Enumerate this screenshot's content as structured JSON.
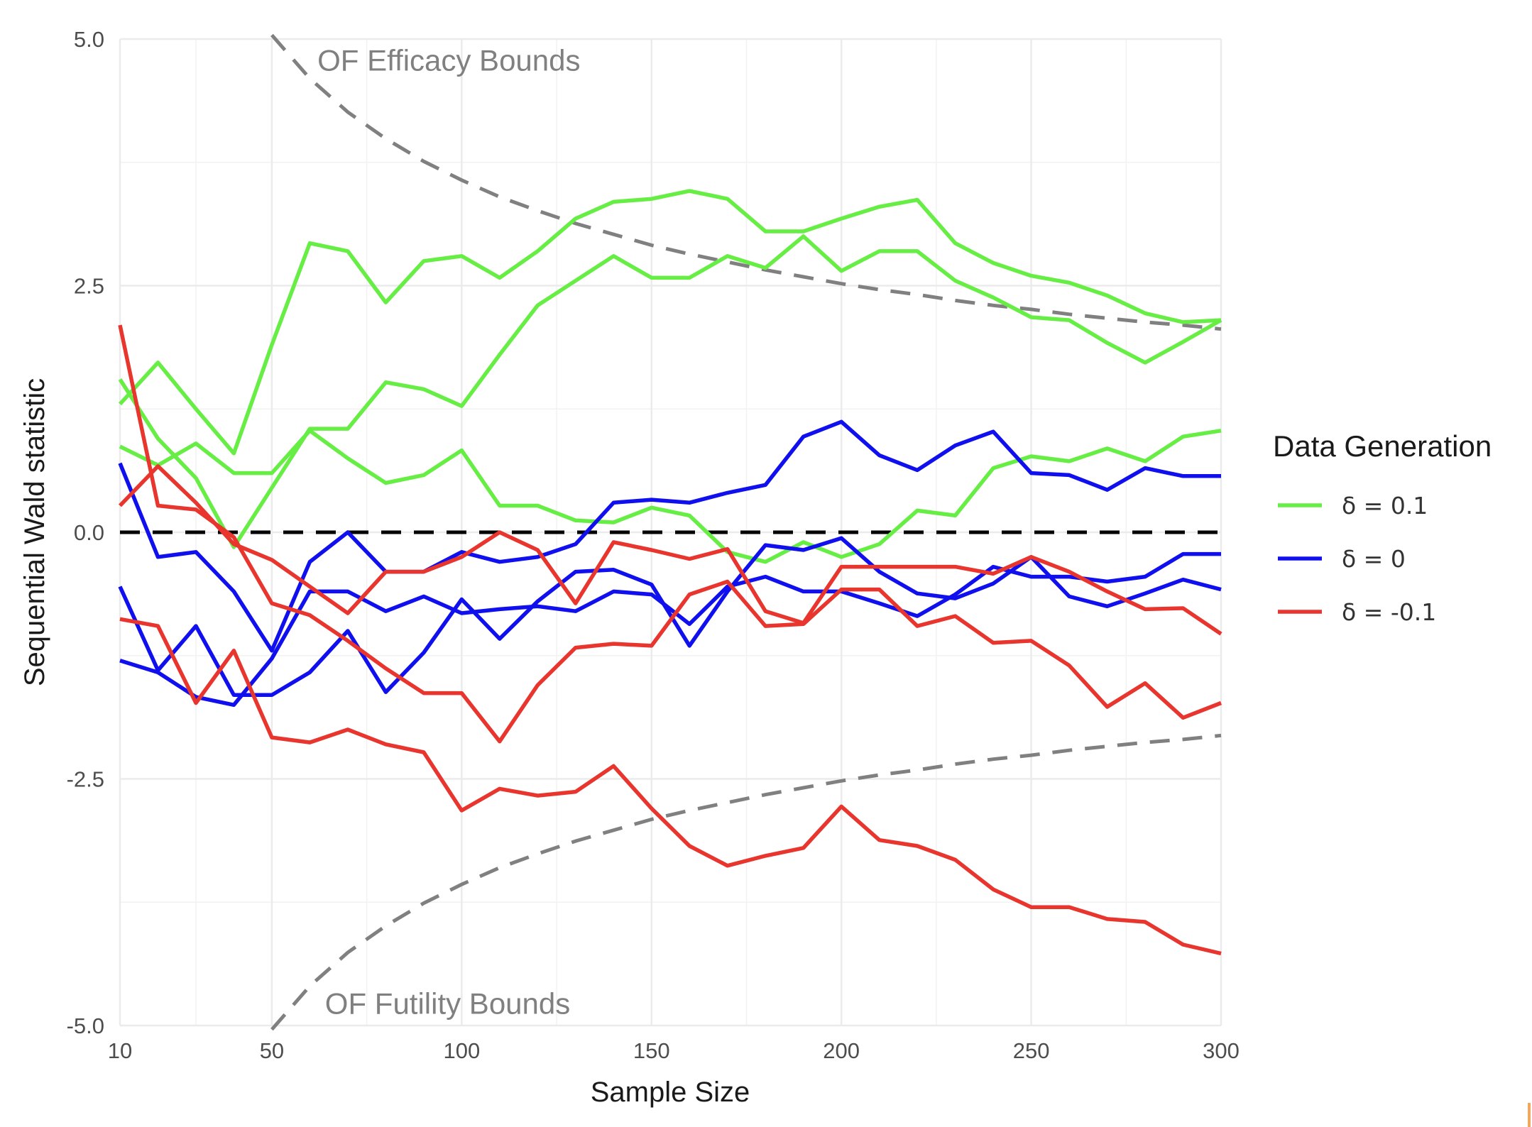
{
  "chart_data": {
    "type": "line",
    "title": "",
    "xlabel": "Sample Size",
    "ylabel": "Sequential Wald statistic",
    "xlim": [
      10,
      300
    ],
    "ylim": [
      -5,
      5
    ],
    "x_ticks": [
      10,
      50,
      100,
      150,
      200,
      250,
      300
    ],
    "x_tick_labels": [
      "10",
      "50",
      "100",
      "150",
      "200",
      "250",
      "300"
    ],
    "x_minor": [
      30,
      75,
      125,
      175,
      225,
      275
    ],
    "y_ticks": [
      5,
      2.5,
      0,
      -2.5,
      -5
    ],
    "y_tick_labels": [
      "5.0",
      "2.5",
      "0.0",
      "-2.5",
      "-5.0"
    ],
    "y_minor": [
      3.75,
      1.25,
      -1.25,
      -3.75
    ],
    "grid": true,
    "x": [
      10,
      20,
      30,
      40,
      50,
      60,
      70,
      80,
      90,
      100,
      110,
      120,
      130,
      140,
      150,
      160,
      170,
      180,
      190,
      200,
      210,
      220,
      230,
      240,
      250,
      260,
      270,
      280,
      290,
      300
    ],
    "legend": {
      "title": "Data Generation",
      "position": "right",
      "entries": [
        {
          "label": "δ = 0.1",
          "color": "#66ee44"
        },
        {
          "label": "δ = 0",
          "color": "#1010ee"
        },
        {
          "label": "δ = -0.1",
          "color": "#e8352e"
        }
      ]
    },
    "series": [
      {
        "name": "δ = 0.1 run 1",
        "group": "δ = 0.1",
        "color": "#66ee44",
        "values": [
          1.3,
          1.72,
          1.25,
          0.8,
          1.9,
          2.93,
          2.85,
          2.33,
          2.75,
          2.8,
          2.58,
          2.85,
          3.18,
          3.35,
          3.38,
          3.46,
          3.38,
          3.05,
          3.05,
          3.18,
          3.3,
          3.37,
          2.93,
          2.73,
          2.6,
          2.53,
          2.4,
          2.22,
          2.13,
          2.15
        ]
      },
      {
        "name": "δ = 0.1 run 2",
        "group": "δ = 0.1",
        "color": "#66ee44",
        "values": [
          1.55,
          0.95,
          0.55,
          -0.15,
          0.45,
          1.05,
          1.05,
          1.52,
          1.45,
          1.28,
          1.8,
          2.3,
          2.55,
          2.8,
          2.58,
          2.58,
          2.8,
          2.68,
          3.0,
          2.65,
          2.85,
          2.85,
          2.55,
          2.38,
          2.18,
          2.15,
          1.92,
          1.72,
          1.93,
          2.15
        ]
      },
      {
        "name": "δ = 0.1 run 3",
        "group": "δ = 0.1",
        "color": "#66ee44",
        "values": [
          0.87,
          0.68,
          0.9,
          0.6,
          0.6,
          1.03,
          0.75,
          0.5,
          0.58,
          0.83,
          0.27,
          0.27,
          0.12,
          0.1,
          0.25,
          0.17,
          -0.2,
          -0.3,
          -0.1,
          -0.25,
          -0.12,
          0.22,
          0.17,
          0.65,
          0.77,
          0.72,
          0.85,
          0.72,
          0.97,
          1.03
        ]
      },
      {
        "name": "δ = 0 run 1",
        "group": "δ = 0",
        "color": "#1010ee",
        "values": [
          0.7,
          -0.25,
          -0.2,
          -0.6,
          -1.2,
          -0.3,
          0.0,
          -0.4,
          -0.4,
          -0.2,
          -0.3,
          -0.25,
          -0.12,
          0.3,
          0.33,
          0.3,
          0.4,
          0.48,
          0.97,
          1.12,
          0.78,
          0.63,
          0.88,
          1.02,
          0.6,
          0.58,
          0.43,
          0.65,
          0.57,
          0.57
        ]
      },
      {
        "name": "δ = 0 run 2",
        "group": "δ = 0",
        "color": "#1010ee",
        "values": [
          -0.55,
          -1.4,
          -0.95,
          -1.65,
          -1.65,
          -1.42,
          -1.0,
          -1.62,
          -1.22,
          -0.68,
          -1.08,
          -0.7,
          -0.4,
          -0.38,
          -0.53,
          -1.15,
          -0.6,
          -0.13,
          -0.18,
          -0.06,
          -0.4,
          -0.62,
          -0.67,
          -0.52,
          -0.25,
          -0.65,
          -0.75,
          -0.62,
          -0.48,
          -0.58
        ]
      },
      {
        "name": "δ = 0 run 3",
        "group": "δ = 0",
        "color": "#1010ee",
        "values": [
          -1.3,
          -1.42,
          -1.67,
          -1.75,
          -1.28,
          -0.6,
          -0.6,
          -0.8,
          -0.65,
          -0.82,
          -0.78,
          -0.75,
          -0.8,
          -0.6,
          -0.63,
          -0.93,
          -0.55,
          -0.45,
          -0.6,
          -0.6,
          -0.72,
          -0.85,
          -0.63,
          -0.35,
          -0.45,
          -0.45,
          -0.5,
          -0.45,
          -0.22,
          -0.22
        ]
      },
      {
        "name": "δ = -0.1 run 1",
        "group": "δ = -0.1",
        "color": "#e8352e",
        "values": [
          2.1,
          0.27,
          0.23,
          -0.05,
          -0.72,
          -0.84,
          -1.1,
          -1.38,
          -1.63,
          -1.63,
          -2.12,
          -1.55,
          -1.17,
          -1.13,
          -1.15,
          -0.63,
          -0.5,
          -0.95,
          -0.93,
          -0.58,
          -0.58,
          -0.95,
          -0.85,
          -1.12,
          -1.1,
          -1.35,
          -1.77,
          -1.53,
          -1.88,
          -1.73
        ]
      },
      {
        "name": "δ = -0.1 run 2",
        "group": "δ = -0.1",
        "color": "#e8352e",
        "values": [
          0.27,
          0.67,
          0.3,
          -0.12,
          -0.28,
          -0.55,
          -0.82,
          -0.4,
          -0.4,
          -0.25,
          0.0,
          -0.18,
          -0.72,
          -0.1,
          -0.18,
          -0.27,
          -0.17,
          -0.8,
          -0.92,
          -0.35,
          -0.35,
          -0.35,
          -0.35,
          -0.42,
          -0.25,
          -0.4,
          -0.6,
          -0.78,
          -0.77,
          -1.03
        ]
      },
      {
        "name": "δ = -0.1 run 3",
        "group": "δ = -0.1",
        "color": "#e8352e",
        "values": [
          -0.88,
          -0.95,
          -1.73,
          -1.2,
          -2.08,
          -2.13,
          -2.0,
          -2.15,
          -2.23,
          -2.82,
          -2.6,
          -2.67,
          -2.63,
          -2.37,
          -2.8,
          -3.18,
          -3.38,
          -3.28,
          -3.2,
          -2.78,
          -3.12,
          -3.18,
          -3.32,
          -3.62,
          -3.8,
          -3.8,
          -3.92,
          -3.95,
          -4.18,
          -4.27
        ]
      }
    ],
    "reference_lines": [
      {
        "name": "zero-line",
        "y": 0,
        "color": "#000000",
        "style": "dashed"
      }
    ],
    "bounds": {
      "color": "#808080",
      "style": "dashed",
      "x": [
        50,
        60,
        70,
        80,
        90,
        100,
        110,
        120,
        130,
        140,
        150,
        160,
        170,
        180,
        190,
        200,
        210,
        220,
        230,
        240,
        250,
        260,
        270,
        280,
        290,
        300
      ],
      "efficacy": [
        5.04,
        4.6,
        4.26,
        3.99,
        3.76,
        3.57,
        3.4,
        3.26,
        3.13,
        3.02,
        2.91,
        2.82,
        2.74,
        2.66,
        2.59,
        2.52,
        2.46,
        2.41,
        2.35,
        2.3,
        2.26,
        2.21,
        2.17,
        2.13,
        2.1,
        2.06
      ],
      "futility": [
        -5.04,
        -4.6,
        -4.26,
        -3.99,
        -3.76,
        -3.57,
        -3.4,
        -3.26,
        -3.13,
        -3.02,
        -2.91,
        -2.82,
        -2.74,
        -2.66,
        -2.59,
        -2.52,
        -2.46,
        -2.41,
        -2.35,
        -2.3,
        -2.26,
        -2.21,
        -2.17,
        -2.13,
        -2.1,
        -2.06
      ]
    },
    "annotations": [
      {
        "name": "efficacy-label",
        "text": "OF Efficacy Bounds",
        "x": 62,
        "y": 4.78
      },
      {
        "name": "futility-label",
        "text": "OF Futility Bounds",
        "x": 64,
        "y": -4.78
      }
    ]
  }
}
